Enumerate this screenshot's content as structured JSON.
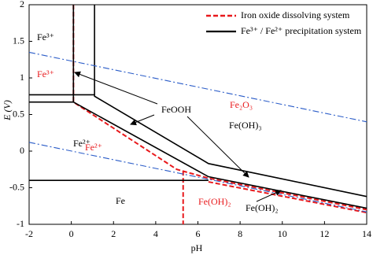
{
  "chart_data": {
    "type": "line",
    "x_label": "pH",
    "y_label": "E (V)",
    "xlim": [
      -2,
      14
    ],
    "ylim": [
      -1,
      2
    ],
    "xticks": [
      -2,
      0,
      2,
      4,
      6,
      8,
      10,
      12,
      14
    ],
    "yticks": [
      -1,
      -0.5,
      0,
      0.5,
      1,
      1.5,
      2
    ],
    "grid": false,
    "legend": "upper right",
    "series": [
      {
        "name": "Iron oxide dissolving system",
        "color": "#e8191c",
        "dash": "dashed",
        "x": [
          0.1,
          0.1,
          5.0,
          6.5,
          14,
          null,
          5.3,
          5.3,
          null,
          6.5,
          14
        ],
        "values": [
          2,
          0.67,
          -0.25,
          -0.37,
          -0.8,
          null,
          -0.27,
          -1,
          null,
          -0.42,
          -0.84
        ]
      },
      {
        "name": "Fe³⁺ / Fe²⁺ precipitation system",
        "color": "#000000",
        "dash": "solid",
        "x": [
          1.1,
          1.1,
          6.5,
          14,
          null,
          -2,
          1.1,
          null,
          -2,
          0.1,
          6.5,
          14,
          null,
          -2,
          6.5,
          null,
          0.1,
          0.1
        ],
        "values": [
          2,
          0.75,
          -0.17,
          -0.62,
          null,
          0.77,
          0.77,
          null,
          0.67,
          0.67,
          -0.35,
          -0.78,
          null,
          -0.4,
          -0.4,
          null,
          2,
          0.67
        ]
      },
      {
        "color": "#2a5cc8",
        "dash": "dashdot",
        "x": [
          -2,
          14,
          null,
          -2,
          14
        ],
        "values": [
          1.35,
          0.4,
          null,
          0.12,
          -0.83
        ]
      }
    ],
    "annotations": [
      {
        "text": "Fe³⁺",
        "color": "#000000"
      },
      {
        "text": "Fe³⁺",
        "color": "#e8191c"
      },
      {
        "text": "Fe²⁺",
        "color": "#000000"
      },
      {
        "text": "Fe²⁺",
        "color": "#e8191c"
      },
      {
        "text": "FeOOH",
        "color": "#000000"
      },
      {
        "text": "Fe₂O₃",
        "color": "#e8191c"
      },
      {
        "text": "Fe(OH)₃",
        "color": "#000000"
      },
      {
        "text": "Fe",
        "color": "#000000"
      },
      {
        "text": "Fe(OH)₂",
        "color": "#e8191c"
      },
      {
        "text": "Fe(OH)₂",
        "color": "#000000"
      }
    ]
  }
}
